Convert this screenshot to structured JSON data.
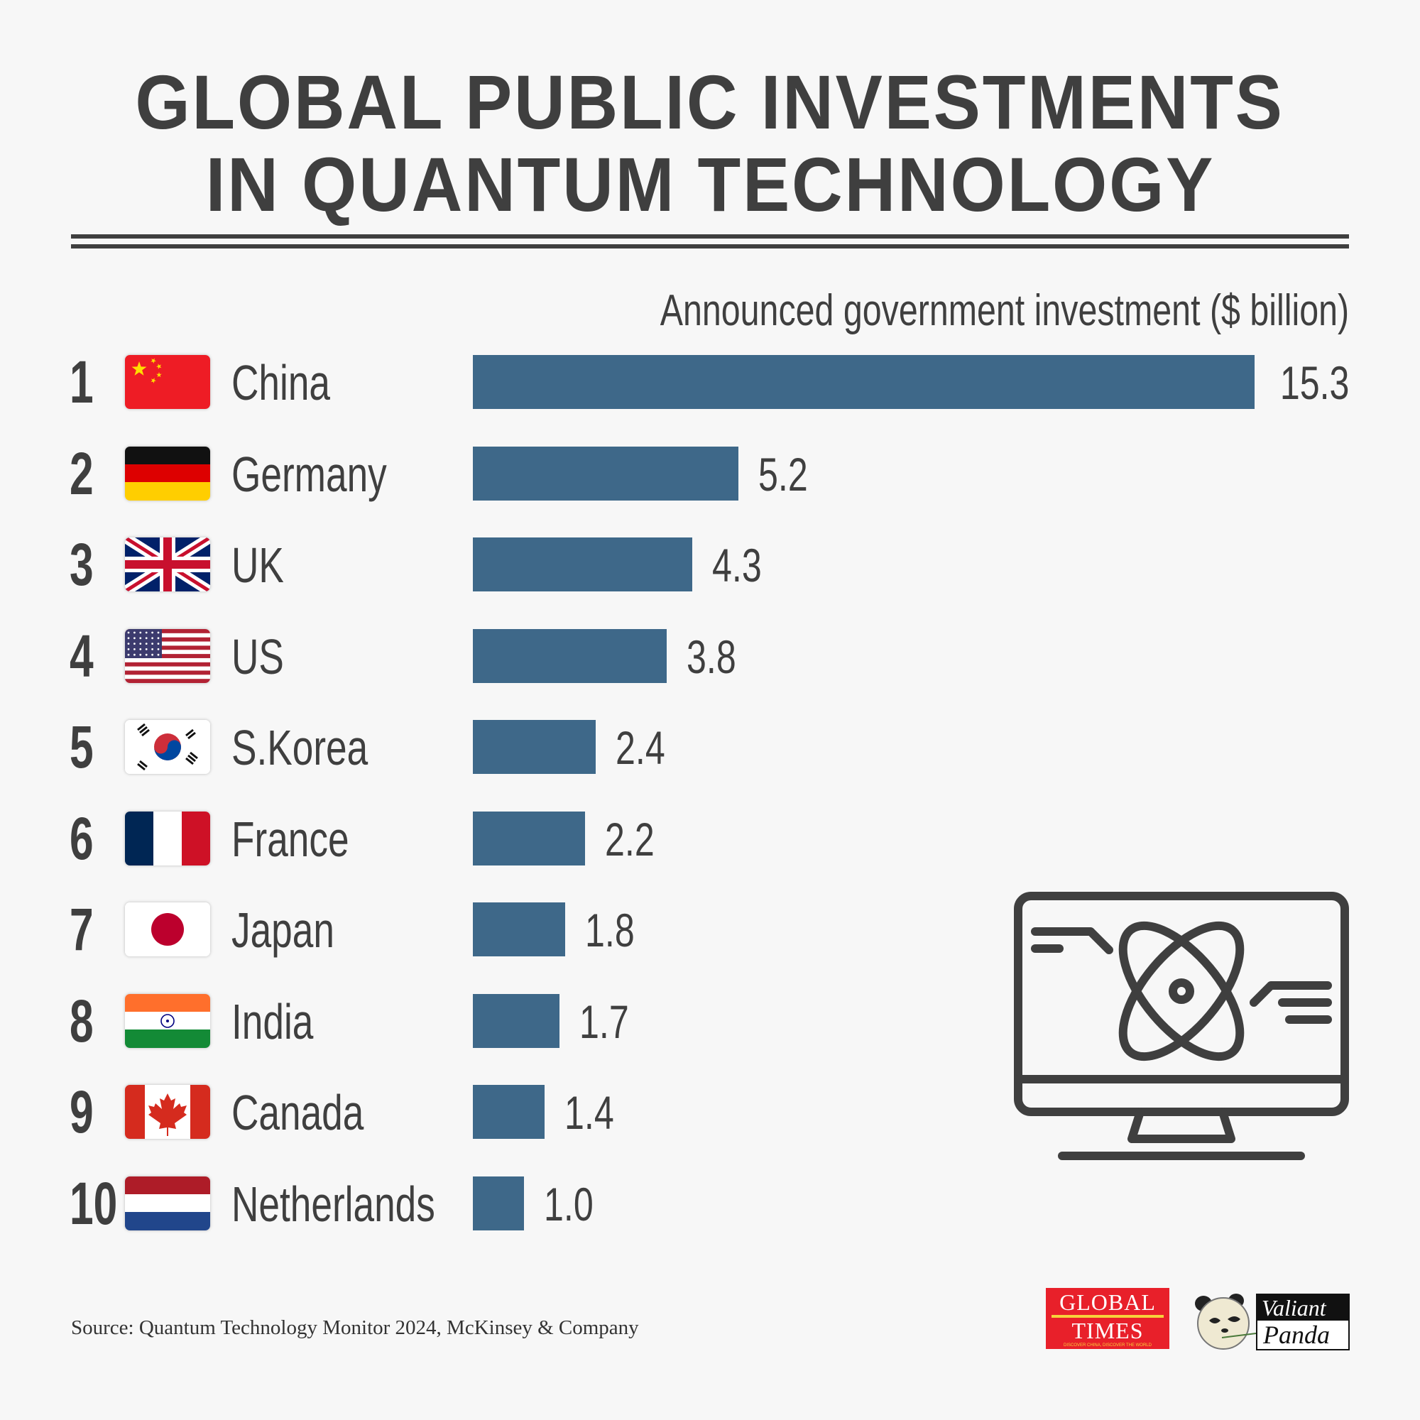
{
  "title": {
    "line1": "GLOBAL PUBLIC INVESTMENTS",
    "line2": "IN QUANTUM TECHNOLOGY"
  },
  "chart_data": {
    "type": "bar",
    "orientation": "horizontal",
    "title": "GLOBAL PUBLIC INVESTMENTS IN QUANTUM TECHNOLOGY",
    "xlabel": "Announced government investment ($ billion)",
    "ylabel": "",
    "xlim": [
      0,
      15.3
    ],
    "categories": [
      "China",
      "Germany",
      "UK",
      "US",
      "S.Korea",
      "France",
      "Japan",
      "India",
      "Canada",
      "Netherlands"
    ],
    "ranks": [
      "1",
      "2",
      "3",
      "4",
      "5",
      "6",
      "7",
      "8",
      "9",
      "10"
    ],
    "values": [
      15.3,
      5.2,
      4.3,
      3.8,
      2.4,
      2.2,
      1.8,
      1.7,
      1.4,
      1.0
    ],
    "labels": [
      "15.3",
      "5.2",
      "4.3",
      "3.8",
      "2.4",
      "2.2",
      "1.8",
      "1.7",
      "1.4",
      "1.0"
    ],
    "flags": [
      "china-flag",
      "germany-flag",
      "uk-flag",
      "us-flag",
      "south-korea-flag",
      "france-flag",
      "japan-flag",
      "india-flag",
      "canada-flag",
      "netherlands-flag"
    ],
    "bar_color": "#3e6889",
    "grid": false
  },
  "source": "Source: Quantum Technology Monitor 2024, McKinsey & Company",
  "logos": {
    "global_times": {
      "line1": "GLOBAL",
      "line2": "TIMES",
      "tagline": "DISCOVER CHINA, DISCOVER THE WORLD"
    },
    "valiant_panda": {
      "line1": "Valiant",
      "line2": "Panda"
    }
  },
  "icons": {
    "illustration": "monitor-atom-icon"
  },
  "colors": {
    "background": "#f7f7f7",
    "text": "#3f3f3f",
    "bar": "#3e6889"
  }
}
